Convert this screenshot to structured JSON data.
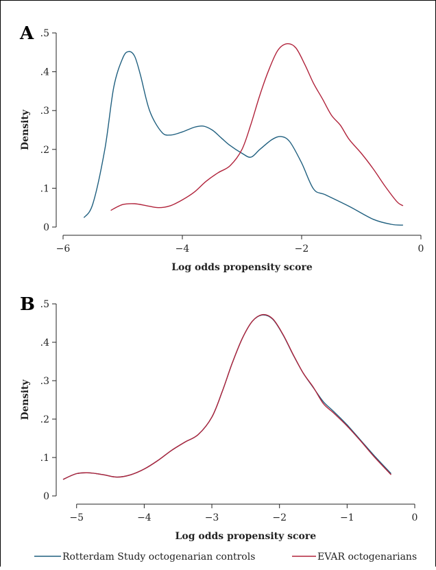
{
  "legend": [
    {
      "name": "Rotterdam Study octogenarian controls",
      "color": "#1f5f7f"
    },
    {
      "name": "EVAR octogenarians",
      "color": "#b0223a"
    }
  ],
  "chart_data": [
    {
      "panel": "A",
      "type": "line",
      "xlabel": "Log odds propensity score",
      "ylabel": "Density",
      "xlim": [
        -6,
        0
      ],
      "ylim": [
        0,
        0.5
      ],
      "xticks": [
        -6,
        -4,
        -2,
        0
      ],
      "xtick_labels": [
        "−6",
        "−4",
        "−2",
        "0"
      ],
      "yticks": [
        0,
        0.1,
        0.2,
        0.3,
        0.4,
        0.5
      ],
      "ytick_labels": [
        "0",
        ".1",
        ".2",
        ".3",
        ".4",
        ".5"
      ],
      "series": [
        {
          "name": "Rotterdam Study octogenarian controls",
          "color": "#1f5f7f",
          "x": [
            -5.65,
            -5.5,
            -5.3,
            -5.15,
            -5.0,
            -4.9,
            -4.8,
            -4.7,
            -4.55,
            -4.35,
            -4.2,
            -4.0,
            -3.8,
            -3.65,
            -3.5,
            -3.35,
            -3.2,
            -3.0,
            -2.85,
            -2.7,
            -2.5,
            -2.35,
            -2.2,
            -2.0,
            -1.8,
            -1.6,
            -1.2,
            -0.8,
            -0.5,
            -0.3
          ],
          "y": [
            0.024,
            0.06,
            0.2,
            0.36,
            0.435,
            0.452,
            0.44,
            0.39,
            0.3,
            0.245,
            0.237,
            0.245,
            0.257,
            0.26,
            0.25,
            0.23,
            0.21,
            0.19,
            0.18,
            0.2,
            0.225,
            0.233,
            0.22,
            0.165,
            0.098,
            0.083,
            0.053,
            0.02,
            0.007,
            0.005
          ]
        },
        {
          "name": "EVAR octogenarians",
          "color": "#b0223a",
          "x": [
            -5.2,
            -5.0,
            -4.8,
            -4.6,
            -4.4,
            -4.2,
            -4.0,
            -3.8,
            -3.6,
            -3.4,
            -3.2,
            -3.0,
            -2.85,
            -2.7,
            -2.55,
            -2.4,
            -2.25,
            -2.1,
            -1.95,
            -1.8,
            -1.65,
            -1.5,
            -1.35,
            -1.2,
            -1.0,
            -0.8,
            -0.6,
            -0.4,
            -0.3
          ],
          "y": [
            0.043,
            0.058,
            0.06,
            0.055,
            0.05,
            0.055,
            0.07,
            0.09,
            0.118,
            0.14,
            0.158,
            0.2,
            0.265,
            0.34,
            0.405,
            0.455,
            0.472,
            0.462,
            0.42,
            0.37,
            0.33,
            0.288,
            0.262,
            0.225,
            0.19,
            0.15,
            0.105,
            0.065,
            0.055
          ]
        }
      ]
    },
    {
      "panel": "B",
      "type": "line",
      "xlabel": "Log odds propensity score",
      "ylabel": "Density",
      "xlim": [
        -5.2,
        0
      ],
      "ylim": [
        0,
        0.5
      ],
      "xticks": [
        -5,
        -4,
        -3,
        -2,
        -1,
        0
      ],
      "xtick_labels": [
        "−5",
        "−4",
        "−3",
        "−2",
        "−1",
        "0"
      ],
      "yticks": [
        0,
        0.1,
        0.2,
        0.3,
        0.4,
        0.5
      ],
      "ytick_labels": [
        "0",
        ".1",
        ".2",
        ".3",
        ".4",
        ".5"
      ],
      "series": [
        {
          "name": "Rotterdam Study octogenarian controls",
          "color": "#1f5f7f",
          "x": [
            -5.2,
            -5.0,
            -4.8,
            -4.6,
            -4.4,
            -4.2,
            -4.0,
            -3.8,
            -3.6,
            -3.4,
            -3.2,
            -3.0,
            -2.85,
            -2.7,
            -2.55,
            -2.4,
            -2.25,
            -2.1,
            -1.95,
            -1.8,
            -1.65,
            -1.5,
            -1.35,
            -1.2,
            -1.0,
            -0.8,
            -0.6,
            -0.35
          ],
          "y": [
            0.043,
            0.058,
            0.06,
            0.055,
            0.049,
            0.055,
            0.07,
            0.092,
            0.118,
            0.14,
            0.16,
            0.205,
            0.27,
            0.345,
            0.41,
            0.455,
            0.471,
            0.46,
            0.42,
            0.368,
            0.32,
            0.282,
            0.245,
            0.22,
            0.185,
            0.145,
            0.105,
            0.058
          ]
        },
        {
          "name": "EVAR octogenarians",
          "color": "#b0223a",
          "x": [
            -5.2,
            -5.0,
            -4.8,
            -4.6,
            -4.4,
            -4.2,
            -4.0,
            -3.8,
            -3.6,
            -3.4,
            -3.2,
            -3.0,
            -2.85,
            -2.7,
            -2.55,
            -2.4,
            -2.25,
            -2.1,
            -1.95,
            -1.8,
            -1.65,
            -1.5,
            -1.35,
            -1.2,
            -1.0,
            -0.8,
            -0.6,
            -0.35
          ],
          "y": [
            0.043,
            0.058,
            0.06,
            0.055,
            0.049,
            0.055,
            0.07,
            0.092,
            0.118,
            0.14,
            0.16,
            0.205,
            0.27,
            0.345,
            0.41,
            0.455,
            0.472,
            0.461,
            0.421,
            0.369,
            0.32,
            0.283,
            0.24,
            0.216,
            0.182,
            0.143,
            0.102,
            0.055
          ]
        }
      ]
    }
  ]
}
